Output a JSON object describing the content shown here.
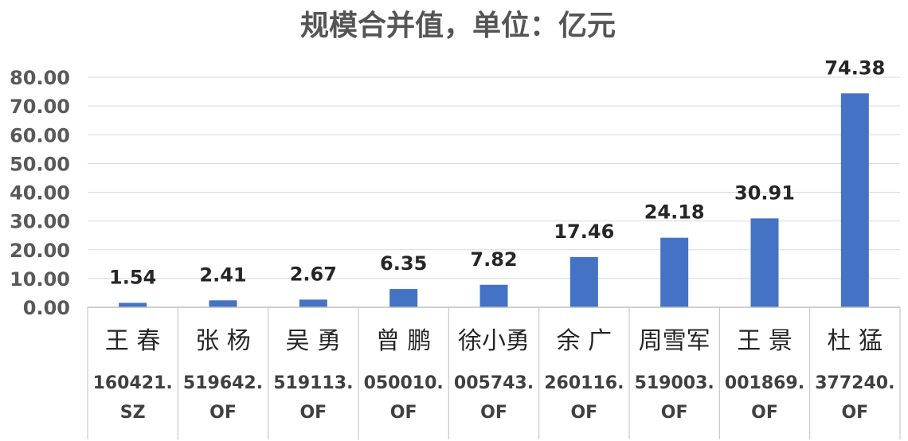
{
  "chart_data": {
    "type": "bar",
    "title": "规模合并值，单位：亿元",
    "categories": [
      {
        "manager": "王 春",
        "code_line1": "160421.",
        "code_line2": "SZ"
      },
      {
        "manager": "张 杨",
        "code_line1": "519642.",
        "code_line2": "OF"
      },
      {
        "manager": "吴 勇",
        "code_line1": "519113.",
        "code_line2": "OF"
      },
      {
        "manager": "曾 鹏",
        "code_line1": "050010.",
        "code_line2": "OF"
      },
      {
        "manager": "徐小勇",
        "code_line1": "005743.",
        "code_line2": "OF"
      },
      {
        "manager": "余 广",
        "code_line1": "260116.",
        "code_line2": "OF"
      },
      {
        "manager": "周雪军",
        "code_line1": "519003.",
        "code_line2": "OF"
      },
      {
        "manager": "王 景",
        "code_line1": "001869.",
        "code_line2": "OF"
      },
      {
        "manager": "杜 猛",
        "code_line1": "377240.",
        "code_line2": "OF"
      }
    ],
    "values": [
      1.54,
      2.41,
      2.67,
      6.35,
      7.82,
      17.46,
      24.18,
      30.91,
      74.38
    ],
    "value_labels": [
      "1.54",
      "2.41",
      "2.67",
      "6.35",
      "7.82",
      "17.46",
      "24.18",
      "30.91",
      "74.38"
    ],
    "ylim": [
      0,
      80
    ],
    "yticks": [
      "0.00",
      "10.00",
      "20.00",
      "30.00",
      "40.00",
      "50.00",
      "60.00",
      "70.00",
      "80.00"
    ],
    "grid": true,
    "bar_color": "#4472C4",
    "grid_color": "#D9D9D9",
    "xlabel": "",
    "ylabel": ""
  }
}
